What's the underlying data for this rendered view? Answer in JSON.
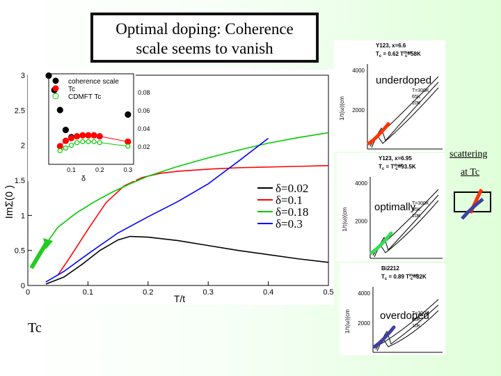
{
  "title": [
    "Optimal doping: Coherence",
    "scale seems to vanish"
  ],
  "main_chart_labels": {
    "tc_label": "Tc",
    "scattering_line1": "scattering",
    "scattering_line2": "at Tc"
  },
  "chart_data": [
    {
      "type": "line",
      "title": "",
      "xlabel": "T/t",
      "ylabel": "ImΣ(0 )",
      "xlim": [
        0,
        0.5
      ],
      "ylim": [
        0,
        3
      ],
      "xticks": [
        "0",
        "0.1",
        "0.2",
        "0.3",
        "0.4",
        "0.5"
      ],
      "yticks": [
        "0",
        "0.5",
        "1",
        "1.5",
        "2",
        "2.5",
        "3"
      ],
      "legend_position": "center-right",
      "series": [
        {
          "name": "δ=0.02",
          "color": "#000000",
          "x": [
            0.03,
            0.06,
            0.09,
            0.12,
            0.15,
            0.17,
            0.2,
            0.25,
            0.3,
            0.35,
            0.4,
            0.45,
            0.5
          ],
          "y": [
            0.02,
            0.12,
            0.3,
            0.5,
            0.65,
            0.7,
            0.69,
            0.64,
            0.57,
            0.5,
            0.44,
            0.38,
            0.33
          ]
        },
        {
          "name": "δ=0.1",
          "color": "#ff0000",
          "x": [
            0.05,
            0.07,
            0.1,
            0.13,
            0.16,
            0.19,
            0.22,
            0.25,
            0.3,
            0.35,
            0.4,
            0.45,
            0.5
          ],
          "y": [
            0.15,
            0.4,
            0.8,
            1.18,
            1.42,
            1.54,
            1.6,
            1.63,
            1.66,
            1.68,
            1.69,
            1.7,
            1.71
          ]
        },
        {
          "name": "δ=0.18",
          "color": "#00cc00",
          "x": [
            0.035,
            0.05,
            0.08,
            0.11,
            0.14,
            0.17,
            0.2,
            0.25,
            0.3,
            0.35,
            0.4,
            0.45,
            0.5
          ],
          "y": [
            0.65,
            0.83,
            1.03,
            1.19,
            1.33,
            1.45,
            1.56,
            1.7,
            1.82,
            1.93,
            2.03,
            2.11,
            2.18
          ]
        },
        {
          "name": "δ=0.3",
          "color": "#0000ff",
          "x": [
            0.03,
            0.06,
            0.1,
            0.15,
            0.2,
            0.25,
            0.3,
            0.35,
            0.4
          ],
          "y": [
            0.05,
            0.2,
            0.45,
            0.75,
            0.98,
            1.2,
            1.45,
            1.77,
            2.1
          ]
        }
      ]
    },
    {
      "type": "line",
      "title": "",
      "xlabel": "δ",
      "xlim": [
        0.02,
        0.32
      ],
      "ylim": [
        0,
        0.1
      ],
      "xticks": [
        "0.1",
        "0.2",
        "0.3"
      ],
      "yticks_right": [
        "0.02",
        "0.04",
        "0.06",
        "0.08"
      ],
      "legend_position": "top-right",
      "series": [
        {
          "name": "coherence scale",
          "color": "#000000",
          "x": [
            0.02,
            0.04,
            0.06,
            0.08,
            0.1,
            0.3
          ],
          "y": [
            0.098,
            0.082,
            0.06,
            0.038,
            0.03,
            0.055
          ]
        },
        {
          "name": "Tc",
          "color": "#ff0000",
          "x": [
            0.06,
            0.08,
            0.1,
            0.12,
            0.14,
            0.16,
            0.18,
            0.2,
            0.3
          ],
          "y": [
            0.02,
            0.026,
            0.029,
            0.031,
            0.032,
            0.032,
            0.032,
            0.031,
            0.025
          ]
        },
        {
          "name": "CDMFT Tc",
          "color": "#00cc00",
          "x": [
            0.06,
            0.08,
            0.1,
            0.12,
            0.14,
            0.16,
            0.18,
            0.2,
            0.3
          ],
          "y": [
            0.015,
            0.018,
            0.021,
            0.024,
            0.025,
            0.025,
            0.025,
            0.024,
            0.02
          ]
        }
      ]
    }
  ],
  "insets": [
    {
      "header1": "Y123, x=6.6",
      "header2": "T",
      "header2_sub": "c",
      "header2_rest": " = 0.62 T",
      "header2_sup": "max",
      "header2_sub2": "c",
      "header2_tail": "=58K",
      "temps": [
        "T=300K",
        "65K",
        "10K"
      ],
      "yaxis": "1/τ(ω)(cm",
      "ytick_top": "4000",
      "ytick_mid": "2000",
      "label": "underdoped"
    },
    {
      "header1": "Y123, x=6.95",
      "header2": "T",
      "header2_sub": "c",
      "header2_rest": " = T",
      "header2_sup": "max",
      "header2_sub2": "c",
      "header2_tail": "=93.5K",
      "temps": [
        "T=300K",
        "95K",
        "10K"
      ],
      "yaxis": "1/τ(ω)(cm",
      "ytick_top": "4000",
      "ytick_mid": "2000",
      "label": "optimally"
    },
    {
      "header1": "Bi2212",
      "header2": "T",
      "header2_sub": "c",
      "header2_rest": " = 0.89 T",
      "header2_sup": "max",
      "header2_sub2": "c",
      "header2_tail": "=82K",
      "temps": [
        "T=300K",
        "90K",
        "10K"
      ],
      "yaxis": "1/τ(ω)(cm",
      "ytick_top": "4000",
      "ytick_mid": "2000",
      "label": "overdoped"
    }
  ],
  "colors": {
    "black": "#000000",
    "red": "#ff0000",
    "green": "#00cc00",
    "blue": "#0000ff",
    "purple": "#4040a0"
  }
}
